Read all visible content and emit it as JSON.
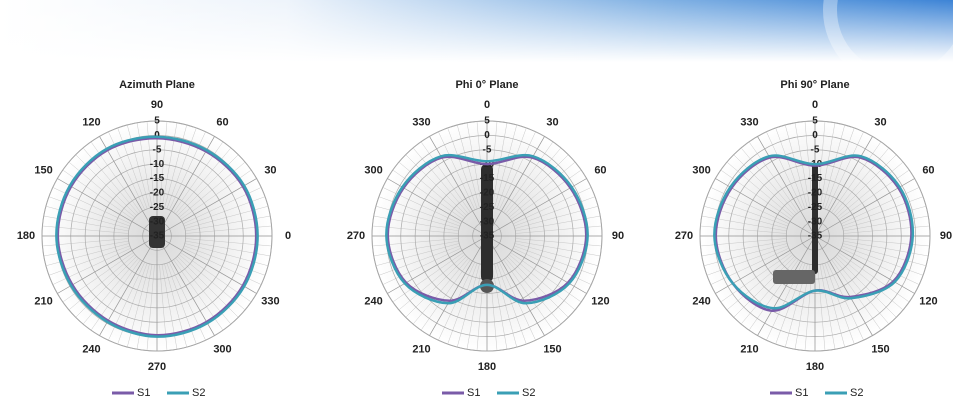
{
  "chart_data": [
    {
      "type": "polar",
      "title": "Azimuth Plane",
      "theta_zero": "E",
      "direction": "counterclockwise",
      "theta": [
        0,
        30,
        60,
        90,
        120,
        150,
        180,
        210,
        240,
        270,
        300,
        330
      ],
      "thetaticks": [
        0,
        30,
        60,
        90,
        120,
        150,
        180,
        210,
        240,
        270,
        300,
        330
      ],
      "rlim": [
        -35,
        5
      ],
      "rticks": [
        5,
        0,
        -5,
        -10,
        -15,
        -20,
        -25,
        -30,
        -35
      ],
      "series": [
        {
          "name": "S1",
          "color": "#7a5ba8",
          "values": [
            -0.5,
            -0.5,
            -1,
            -1,
            -0.5,
            -0.5,
            -0.5,
            -1,
            -1,
            -0.5,
            -0.5,
            -0.5
          ]
        },
        {
          "name": "S2",
          "color": "#3a9fb5",
          "values": [
            0,
            0,
            -0.5,
            -0.5,
            0,
            0,
            0,
            -0.5,
            -0.5,
            0,
            0,
            0
          ]
        }
      ]
    },
    {
      "type": "polar",
      "title": "Phi 0° Plane",
      "theta_zero": "N",
      "direction": "clockwise",
      "theta": [
        0,
        30,
        60,
        90,
        120,
        150,
        180,
        210,
        240,
        270,
        300,
        330
      ],
      "thetaticks": [
        0,
        30,
        60,
        90,
        120,
        150,
        180,
        210,
        240,
        270,
        300,
        330
      ],
      "rlim": [
        -35,
        5
      ],
      "rticks": [
        5,
        0,
        -5,
        -10,
        -15,
        -20,
        -25,
        -30,
        -35
      ],
      "series": [
        {
          "name": "S1",
          "color": "#7a5ba8",
          "values": [
            -10,
            -3.5,
            -1.5,
            -0.5,
            -2.5,
            -9,
            -18,
            -9,
            -2.5,
            -0.5,
            -1.5,
            -3.5
          ]
        },
        {
          "name": "S2",
          "color": "#3a9fb5",
          "values": [
            -9,
            -3,
            -1,
            0,
            -2,
            -8,
            -18,
            -8,
            -2,
            0,
            -1,
            -3
          ]
        }
      ]
    },
    {
      "type": "polar",
      "title": "Phi 90° Plane",
      "theta_zero": "N",
      "direction": "clockwise",
      "theta": [
        0,
        30,
        60,
        90,
        120,
        150,
        180,
        210,
        240,
        270,
        300,
        330
      ],
      "thetaticks": [
        0,
        30,
        60,
        90,
        120,
        150,
        180,
        210,
        240,
        270,
        300,
        330
      ],
      "rlim": [
        -35,
        5
      ],
      "rticks": [
        5,
        0,
        -5,
        -10,
        -15,
        -20,
        -25,
        -30,
        -35
      ],
      "series": [
        {
          "name": "S1",
          "color": "#7a5ba8",
          "values": [
            -10.5,
            -3.5,
            -1.5,
            -1.5,
            -3.5,
            -10.5,
            -16,
            -5,
            -2,
            -0.5,
            -1.5,
            -3.5
          ]
        },
        {
          "name": "S2",
          "color": "#3a9fb5",
          "values": [
            -10,
            -3,
            -1,
            -1,
            -3,
            -10,
            -16,
            -6,
            -2,
            0,
            -1,
            -3
          ]
        }
      ]
    }
  ]
}
